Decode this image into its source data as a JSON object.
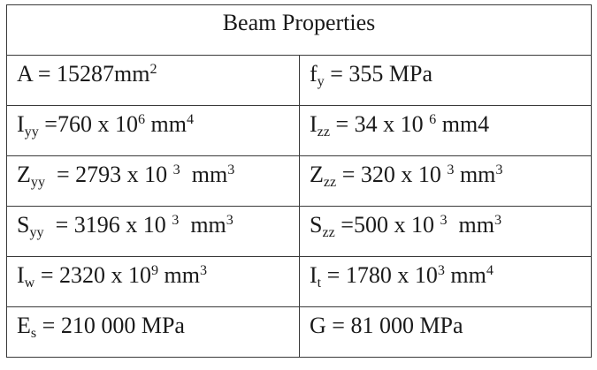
{
  "table": {
    "title": "Beam Properties",
    "rows": [
      [
        [
          {
            "t": "A = 15287mm"
          },
          {
            "t": "2",
            "s": "sup"
          }
        ],
        [
          {
            "t": "f"
          },
          {
            "t": "y",
            "s": "sub"
          },
          {
            "t": " = 355 MPa"
          }
        ]
      ],
      [
        [
          {
            "t": "I"
          },
          {
            "t": "yy",
            "s": "sub"
          },
          {
            "t": " =760 x 10"
          },
          {
            "t": "6",
            "s": "sup"
          },
          {
            "t": " mm"
          },
          {
            "t": "4",
            "s": "sup"
          }
        ],
        [
          {
            "t": "I"
          },
          {
            "t": "zz",
            "s": "sub"
          },
          {
            "t": " = 34 x 10 "
          },
          {
            "t": "6",
            "s": "sup"
          },
          {
            "t": " mm4"
          }
        ]
      ],
      [
        [
          {
            "t": "Z"
          },
          {
            "t": "yy",
            "s": "sub"
          },
          {
            "t": "  = 2793 x 10 "
          },
          {
            "t": "3",
            "s": "sup"
          },
          {
            "t": "  mm"
          },
          {
            "t": "3",
            "s": "sup"
          }
        ],
        [
          {
            "t": "Z"
          },
          {
            "t": "zz",
            "s": "sub"
          },
          {
            "t": " = 320 x 10 "
          },
          {
            "t": "3",
            "s": "sup"
          },
          {
            "t": " mm"
          },
          {
            "t": "3",
            "s": "sup"
          }
        ]
      ],
      [
        [
          {
            "t": "S"
          },
          {
            "t": "yy",
            "s": "sub"
          },
          {
            "t": "  = 3196 x 10 "
          },
          {
            "t": "3",
            "s": "sup"
          },
          {
            "t": "  mm"
          },
          {
            "t": "3",
            "s": "sup"
          }
        ],
        [
          {
            "t": "S"
          },
          {
            "t": "zz",
            "s": "sub"
          },
          {
            "t": " =500 x 10 "
          },
          {
            "t": "3",
            "s": "sup"
          },
          {
            "t": "  mm"
          },
          {
            "t": "3",
            "s": "sup"
          }
        ]
      ],
      [
        [
          {
            "t": "I"
          },
          {
            "t": "w",
            "s": "sub"
          },
          {
            "t": " = 2320 x 10"
          },
          {
            "t": "9",
            "s": "sup"
          },
          {
            "t": " mm"
          },
          {
            "t": "3",
            "s": "sup"
          }
        ],
        [
          {
            "t": "I"
          },
          {
            "t": "t",
            "s": "sub"
          },
          {
            "t": " = 1780 x 10"
          },
          {
            "t": "3",
            "s": "sup"
          },
          {
            "t": " mm"
          },
          {
            "t": "4",
            "s": "sup"
          }
        ]
      ],
      [
        [
          {
            "t": "E"
          },
          {
            "t": "s",
            "s": "sub"
          },
          {
            "t": " = 210 000 MPa"
          }
        ],
        [
          {
            "t": "G = 81 000 MPa"
          }
        ]
      ]
    ]
  }
}
